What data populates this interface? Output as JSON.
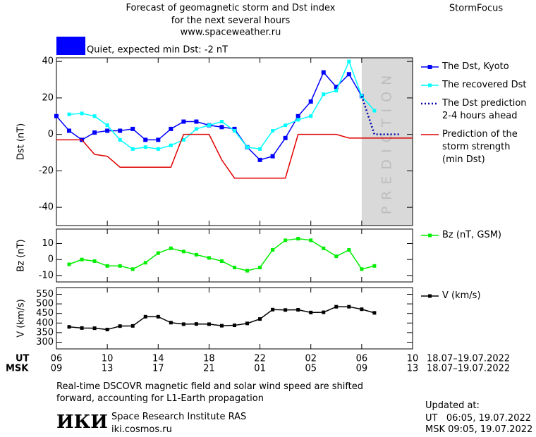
{
  "header": {
    "title": "Forecast of geomagnetic storm and Dst index\nfor the next several hours",
    "url": "www.spaceweather.ru",
    "brand": "StormFocus",
    "status": "Quiet, expected min Dst: -2 nT",
    "status_color": "#0000ff"
  },
  "chart_data": [
    {
      "type": "line",
      "ylabel": "Dst (nT)",
      "xlim": [
        6,
        34
      ],
      "ylim": [
        -50,
        42
      ],
      "yticks": [
        -40,
        -20,
        0,
        20,
        40
      ],
      "zone": {
        "from": 30,
        "to": 34,
        "label": "PREDICTION",
        "color": "#d9d9d9"
      },
      "series": [
        {
          "name": "The Dst, Kyoto",
          "color": "#0000ff",
          "marker": "square",
          "dash": "solid",
          "x": [
            6,
            7,
            8,
            9,
            10,
            11,
            12,
            13,
            14,
            15,
            16,
            17,
            18,
            19,
            20,
            21,
            22,
            23,
            24,
            25,
            26,
            27,
            28,
            29,
            30
          ],
          "values": [
            10,
            2,
            -3,
            1,
            2,
            2,
            3,
            -3,
            -3,
            3,
            7,
            7,
            5,
            4,
            3,
            -7,
            -14,
            -12,
            -2,
            10,
            18,
            34,
            26,
            33,
            21
          ]
        },
        {
          "name": "The recovered Dst",
          "color": "#00ffff",
          "marker": "square",
          "dash": "solid",
          "x": [
            7,
            8,
            9,
            10,
            11,
            12,
            13,
            14,
            15,
            16,
            17,
            18,
            19,
            20,
            21,
            22,
            23,
            24,
            25,
            26,
            27,
            28,
            29,
            30,
            31
          ],
          "values": [
            11,
            11.5,
            10,
            5,
            -3,
            -8,
            -7,
            -8,
            -6,
            -3,
            3,
            5,
            7,
            2,
            -7,
            -8,
            2,
            5,
            8,
            10,
            22,
            24,
            40,
            21,
            13
          ]
        },
        {
          "name": "The Dst prediction\n2-4 hours ahead",
          "color": "#0000aa",
          "marker": "none",
          "dash": "dotted",
          "x": [
            30,
            31,
            33
          ],
          "values": [
            21,
            0,
            0
          ]
        },
        {
          "name": "Prediction of the\nstorm strength\n(min Dst)",
          "color": "#e00000",
          "marker": "none",
          "dash": "solid",
          "x": [
            6,
            8,
            9,
            10,
            11,
            15,
            16,
            18,
            19,
            20,
            24,
            25,
            28,
            29,
            34
          ],
          "values": [
            -3,
            -3,
            -11,
            -12,
            -18,
            -18,
            0,
            0,
            -14,
            -24,
            -24,
            0,
            0,
            -2,
            -2
          ]
        }
      ]
    },
    {
      "type": "line",
      "ylabel": "Bz (nT)",
      "xlim": [
        6,
        34
      ],
      "ylim": [
        -14,
        19
      ],
      "yticks": [
        -10,
        0,
        10
      ],
      "series": [
        {
          "name": "Bz (nT, GSM)",
          "color": "#00ee00",
          "marker": "square",
          "dash": "solid",
          "x": [
            7,
            8,
            9,
            10,
            11,
            12,
            13,
            14,
            15,
            16,
            17,
            18,
            19,
            20,
            21,
            22,
            23,
            24,
            25,
            26,
            27,
            28,
            29,
            30,
            31
          ],
          "values": [
            -3,
            0,
            -1,
            -4,
            -4,
            -6,
            -2,
            4,
            7,
            5,
            3,
            1,
            -1,
            -5,
            -7,
            -5,
            6,
            12,
            13,
            12,
            7,
            2,
            6,
            -6,
            -4
          ]
        }
      ]
    },
    {
      "type": "line",
      "ylabel": "V (km/s)",
      "xlim": [
        6,
        34
      ],
      "ylim": [
        265,
        585
      ],
      "yticks": [
        300,
        350,
        400,
        450,
        500,
        550
      ],
      "xlabel": "UT",
      "xlabel_msk": "MSK",
      "xticks": [
        {
          "value": 6,
          "label": "06"
        },
        10,
        14,
        18,
        22,
        {
          "value": 26,
          "label": "02"
        },
        {
          "value": 30,
          "label": "06"
        },
        {
          "value": 34,
          "label": "10"
        }
      ],
      "xticks_msk": [
        {
          "value": 6,
          "label": "09"
        },
        {
          "value": 10,
          "label": "13"
        },
        {
          "value": 14,
          "label": "17"
        },
        {
          "value": 18,
          "label": "21"
        },
        {
          "value": 22,
          "label": "01"
        },
        {
          "value": 26,
          "label": "05"
        },
        {
          "value": 30,
          "label": "09"
        },
        {
          "value": 34,
          "label": "13"
        }
      ],
      "date_range_ut": "18.07–19.07.2022",
      "date_range_msk": "18.07–19.07.2022",
      "series": [
        {
          "name": "V (km/s)",
          "color": "#000000",
          "marker": "square",
          "dash": "solid",
          "x": [
            7,
            8,
            9,
            10,
            11,
            12,
            13,
            14,
            15,
            16,
            17,
            18,
            19,
            20,
            21,
            22,
            23,
            24,
            25,
            26,
            27,
            28,
            29,
            30,
            31
          ],
          "values": [
            380,
            374,
            373,
            366,
            384,
            385,
            433,
            433,
            402,
            394,
            395,
            394,
            386,
            388,
            398,
            421,
            470,
            468,
            469,
            455,
            456,
            485,
            485,
            472,
            453
          ]
        }
      ]
    }
  ],
  "footer": {
    "note": "Real-time DSCOVR magnetic field and solar wind speed are shifted\nforward, accounting for L1-Earth propagation",
    "logo": "ИКИ",
    "institute": "Space Research Institute RAS",
    "url": "iki.cosmos.ru",
    "updated_title": "Updated at:",
    "updated_ut": "UT   06:05, 19.07.2022",
    "updated_msk": "MSK 09:05, 19.07.2022"
  }
}
